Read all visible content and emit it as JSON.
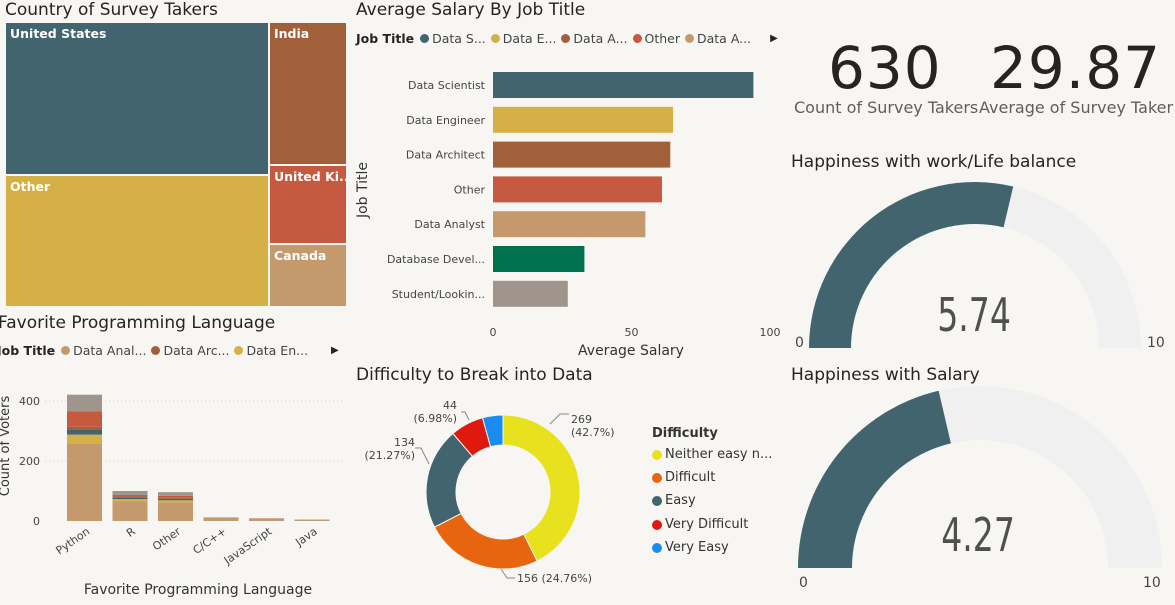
{
  "colors": {
    "teal": "#41646f",
    "gold": "#d4b047",
    "brown": "#a1603a",
    "red": "#c55a40",
    "tan": "#c49a6c",
    "green": "#00704f",
    "gray": "#9f958b",
    "gauge_bg": "#f0f0f0"
  },
  "treemap": {
    "title": "Country of Survey Takers",
    "tiles": [
      {
        "label": "United States"
      },
      {
        "label": "India"
      },
      {
        "label": "Other"
      },
      {
        "label": "United Ki..."
      },
      {
        "label": "Canada"
      }
    ]
  },
  "salary": {
    "title": "Average Salary By Job Title",
    "legend_title": "Job Title",
    "legend": [
      "Data S...",
      "Data E...",
      "Data A...",
      "Other",
      "Data A..."
    ],
    "y_axis_title": "Job Title",
    "x_axis_title": "Average Salary"
  },
  "kpi": {
    "count_value": "630",
    "count_label": "Count of Survey Takers",
    "avg_value": "29.87",
    "avg_label": "Average of Survey Taker"
  },
  "gauge_wlb": {
    "title": "Happiness with work/Life balance",
    "value": "5.74",
    "min": "0",
    "max": "10"
  },
  "gauge_salary": {
    "title": "Happiness with Salary",
    "value": "4.27",
    "min": "0",
    "max": "10"
  },
  "language": {
    "title": "Favorite Programming Language",
    "legend_title": "Job Title",
    "legend": [
      "Data Anal...",
      "Data Arc...",
      "Data En..."
    ],
    "y_axis_title": "Count of Voters",
    "x_axis_title": "Favorite Programming Language"
  },
  "difficulty": {
    "title": "Difficulty to Break into Data",
    "legend_title": "Difficulty",
    "legend": [
      "Neither easy n...",
      "Difficult",
      "Easy",
      "Very Difficult",
      "Very Easy"
    ]
  },
  "chart_data": [
    {
      "type": "treemap",
      "title": "Country of Survey Takers",
      "categories": [
        "United States",
        "Other",
        "India",
        "United Ki...",
        "Canada"
      ]
    },
    {
      "type": "bar",
      "orientation": "horizontal",
      "title": "Average Salary By Job Title",
      "xlabel": "Average Salary",
      "ylabel": "Job Title",
      "categories": [
        "Data Scientist",
        "Data Engineer",
        "Data Architect",
        "Other",
        "Data Analyst",
        "Database Devel...",
        "Student/Lookin..."
      ],
      "values": [
        94,
        65,
        64,
        61,
        55,
        33,
        27
      ],
      "colors": [
        "#41646f",
        "#d4b047",
        "#a1603a",
        "#c55a40",
        "#c49a6c",
        "#00704f",
        "#9f958b"
      ],
      "xlim": [
        0,
        100
      ],
      "xticks": [
        "0",
        "50",
        "100"
      ]
    },
    {
      "type": "bar",
      "stacked": true,
      "title": "Favorite Programming Language",
      "xlabel": "Favorite Programming Language",
      "ylabel": "Count of Voters",
      "categories": [
        "Python",
        "R",
        "Other",
        "C/C++",
        "JavaScript",
        "Java"
      ],
      "series": [
        {
          "name": "Data Anal...",
          "color": "#c49a6c",
          "values": [
            258,
            65,
            62,
            7,
            5,
            3
          ]
        },
        {
          "name": "Data En...",
          "color": "#d4b047",
          "values": [
            30,
            8,
            7,
            1,
            1,
            0
          ]
        },
        {
          "name": "",
          "color": "#41646f",
          "values": [
            18,
            4,
            5,
            1,
            1,
            1
          ]
        },
        {
          "name": "Data Arc...",
          "color": "#a1603a",
          "values": [
            8,
            5,
            5,
            1,
            0,
            0
          ]
        },
        {
          "name": "",
          "color": "#c55a40",
          "values": [
            52,
            5,
            5,
            1,
            1,
            0
          ]
        },
        {
          "name": "",
          "color": "#9f958b",
          "values": [
            55,
            13,
            12,
            1,
            1,
            1
          ]
        }
      ],
      "ylim": [
        0,
        450
      ],
      "yticks": [
        "0",
        "200",
        "400"
      ]
    },
    {
      "type": "pie",
      "donut": true,
      "title": "Difficulty to Break into Data",
      "categories": [
        "Neither easy n...",
        "Difficult",
        "Easy",
        "Very Difficult",
        "Very Easy"
      ],
      "values": [
        269,
        156,
        134,
        44,
        27
      ],
      "colors": [
        "#e8e21e",
        "#e8650f",
        "#41646f",
        "#e0190f",
        "#1a8cf0"
      ],
      "labels": [
        {
          "count": "269",
          "pct": "(42.7%)"
        },
        {
          "count": "156 (24.76%)",
          "pct": ""
        },
        {
          "count": "134",
          "pct": "(21.27%)"
        },
        {
          "count": "44",
          "pct": "(6.98%)"
        }
      ]
    },
    {
      "type": "gauge",
      "title": "Happiness with work/Life balance",
      "value": 5.74,
      "min": 0,
      "max": 10
    },
    {
      "type": "gauge",
      "title": "Happiness with Salary",
      "value": 4.27,
      "min": 0,
      "max": 10
    }
  ]
}
